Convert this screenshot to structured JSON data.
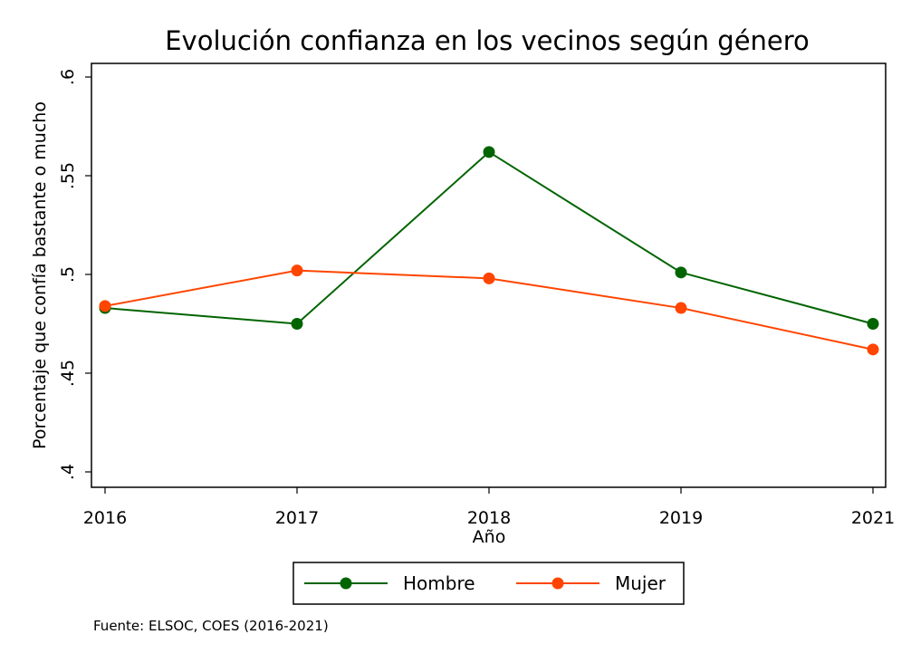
{
  "chart_data": {
    "type": "line",
    "title": "Evolución confianza en los vecinos según género",
    "xlabel": "Año",
    "ylabel": "Porcentaje que confía bastante o mucho",
    "x": [
      "2016",
      "2017",
      "2018",
      "2019",
      "2021"
    ],
    "x_positions": [
      0,
      1,
      2,
      3,
      4
    ],
    "ylim": [
      0.4,
      0.6
    ],
    "yticks": [
      {
        "value": 0.4,
        "label": ".4"
      },
      {
        "value": 0.45,
        "label": ".45"
      },
      {
        "value": 0.5,
        "label": ".5"
      },
      {
        "value": 0.55,
        "label": ".55"
      },
      {
        "value": 0.6,
        "label": ".6"
      }
    ],
    "grid": false,
    "legend_position": "bottom",
    "series": [
      {
        "name": "Hombre",
        "color": "#006400",
        "values": [
          0.483,
          0.475,
          0.562,
          0.501,
          0.475
        ]
      },
      {
        "name": "Mujer",
        "color": "#ff4500",
        "values": [
          0.484,
          0.502,
          0.498,
          0.483,
          0.462
        ]
      }
    ],
    "note": "Fuente: ELSOC, COES (2016-2021)"
  }
}
